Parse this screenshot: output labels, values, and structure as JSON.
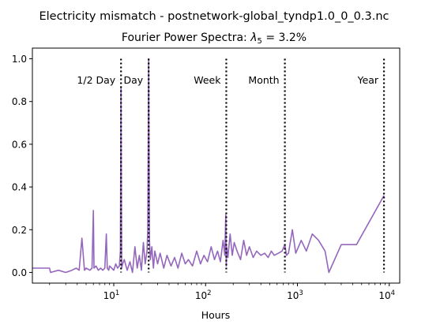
{
  "figure": {
    "suptitle": "Electricity mismatch - postnetwork-global_tyndp1.0_0_0.3.nc"
  },
  "chart_data": {
    "type": "line",
    "title_prefix": "Fourier Power Spectra: ",
    "title_lambda": "λ",
    "title_subscript": "5",
    "title_suffix": " = 3.2%",
    "xlabel": "Hours",
    "ylabel": "",
    "xscale": "log",
    "xlim": [
      1.3,
      13000
    ],
    "ylim": [
      -0.05,
      1.05
    ],
    "x_ticks": [
      {
        "value": 10,
        "base": "10",
        "exp": "1"
      },
      {
        "value": 100,
        "base": "10",
        "exp": "2"
      },
      {
        "value": 1000,
        "base": "10",
        "exp": "3"
      },
      {
        "value": 10000,
        "base": "10",
        "exp": "4"
      }
    ],
    "y_ticks": [
      {
        "value": 0.0,
        "label": "0.0"
      },
      {
        "value": 0.2,
        "label": "0.2"
      },
      {
        "value": 0.4,
        "label": "0.4"
      },
      {
        "value": 0.6,
        "label": "0.6"
      },
      {
        "value": 0.8,
        "label": "0.8"
      },
      {
        "value": 1.0,
        "label": "1.0"
      }
    ],
    "grid": false,
    "legend": "none",
    "series_color": "#9467bd",
    "series": [
      {
        "x": [
          1.3,
          2.0,
          2.05,
          2.5,
          3.0,
          3.5,
          3.9,
          4.2,
          4.5,
          4.8,
          5.0,
          5.5,
          5.8,
          6.0,
          6.1,
          6.4,
          6.8,
          7.2,
          7.6,
          8.0,
          8.3,
          8.5,
          8.8,
          9.0,
          9.5,
          10.0,
          10.5,
          11.0,
          11.5,
          11.8,
          12.0,
          12.2,
          12.5,
          13.0,
          14.0,
          15.0,
          16.0,
          17.0,
          18.0,
          19.0,
          20.0,
          21.0,
          22.0,
          23.0,
          23.5,
          24.0,
          24.5,
          25.0,
          26.0,
          27.0,
          28.0,
          30.0,
          32.0,
          35.0,
          38.0,
          42.0,
          46.0,
          50.0,
          55.0,
          60.0,
          65.0,
          72.0,
          80.0,
          88.0,
          96.0,
          105.0,
          115.0,
          125.0,
          135.0,
          145.0,
          155.0,
          162.0,
          166.0,
          168.0,
          170.0,
          175.0,
          185.0,
          195.0,
          205.0,
          220.0,
          240.0,
          260.0,
          280.0,
          300.0,
          330.0,
          360.0,
          400.0,
          440.0,
          480.0,
          520.0,
          560.0,
          620.0,
          680.0,
          730.0,
          760.0,
          800.0,
          880.0,
          960.0,
          1100.0,
          1250.0,
          1450.0,
          1700.0,
          2000.0,
          2200.0,
          3000.0,
          4400.0,
          8760.0
        ],
        "y": [
          0.02,
          0.02,
          0.0,
          0.01,
          0.0,
          0.01,
          0.02,
          0.01,
          0.16,
          0.01,
          0.02,
          0.01,
          0.02,
          0.29,
          0.02,
          0.03,
          0.01,
          0.02,
          0.01,
          0.02,
          0.18,
          0.02,
          0.01,
          0.03,
          0.02,
          0.01,
          0.04,
          0.02,
          0.03,
          0.1,
          0.87,
          0.02,
          0.04,
          0.06,
          0.01,
          0.05,
          0.0,
          0.12,
          0.02,
          0.08,
          0.01,
          0.14,
          0.04,
          0.1,
          0.2,
          1.0,
          0.15,
          0.06,
          0.12,
          0.02,
          0.1,
          0.04,
          0.09,
          0.02,
          0.08,
          0.03,
          0.07,
          0.02,
          0.09,
          0.04,
          0.06,
          0.03,
          0.1,
          0.04,
          0.08,
          0.05,
          0.12,
          0.06,
          0.1,
          0.05,
          0.15,
          0.08,
          0.27,
          0.03,
          0.12,
          0.07,
          0.18,
          0.08,
          0.14,
          0.1,
          0.06,
          0.15,
          0.08,
          0.12,
          0.07,
          0.1,
          0.08,
          0.09,
          0.07,
          0.1,
          0.08,
          0.09,
          0.1,
          0.13,
          0.08,
          0.09,
          0.2,
          0.09,
          0.15,
          0.1,
          0.18,
          0.15,
          0.1,
          0.0,
          0.13,
          0.13,
          0.36
        ]
      }
    ],
    "markers": [
      {
        "label": "1/2 Day",
        "x": 12
      },
      {
        "label": "Day",
        "x": 24
      },
      {
        "label": "Week",
        "x": 168
      },
      {
        "label": "Month",
        "x": 730
      },
      {
        "label": "Year",
        "x": 8760
      }
    ],
    "marker_label_y": 0.9
  }
}
